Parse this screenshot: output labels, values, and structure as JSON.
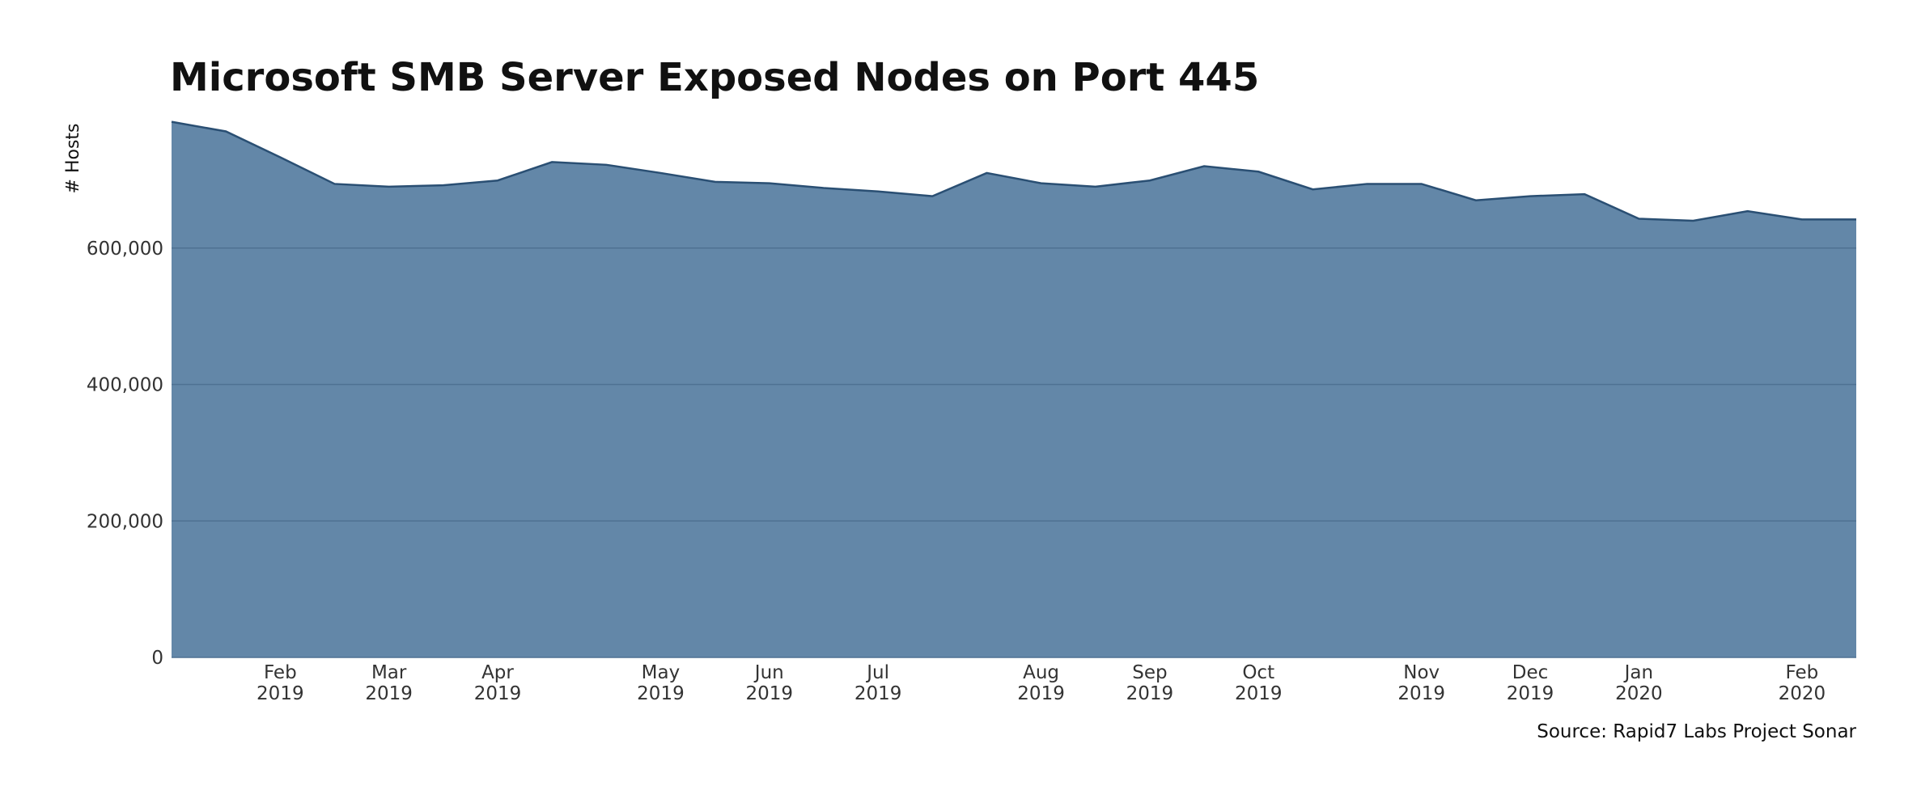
{
  "chart_data": {
    "type": "area",
    "title": "Microsoft SMB Server Exposed Nodes on Port 445",
    "y_label": "# Hosts",
    "source": "Source: Rapid7 Labs Project Sonar",
    "categories": [
      null,
      null,
      "Feb 2019",
      null,
      "Mar 2019",
      null,
      "Apr 2019",
      null,
      null,
      "May 2019",
      null,
      "Jun 2019",
      null,
      "Jul 2019",
      null,
      null,
      "Aug 2019",
      null,
      "Sep 2019",
      null,
      "Oct 2019",
      null,
      null,
      "Nov 2019",
      null,
      "Dec 2019",
      null,
      "Jan 2020",
      null,
      null,
      "Feb 2020",
      null
    ],
    "values": [
      785000,
      771000,
      733000,
      694000,
      690000,
      692000,
      699000,
      726000,
      722000,
      710000,
      697000,
      695000,
      688000,
      683000,
      676000,
      710000,
      695000,
      690000,
      699000,
      720000,
      712000,
      686000,
      694000,
      694000,
      670000,
      676000,
      679000,
      643000,
      640000,
      654000,
      642000,
      642000
    ],
    "color": "#6387a8",
    "line_color": "#2a4f73",
    "ylim": [
      0,
      800000
    ],
    "yticks": [
      0,
      {
        "value": 200000,
        "label": "200,000"
      },
      {
        "value": 400000,
        "label": "400,000"
      },
      {
        "value": 600000,
        "label": "600,000"
      }
    ],
    "grid": true
  }
}
